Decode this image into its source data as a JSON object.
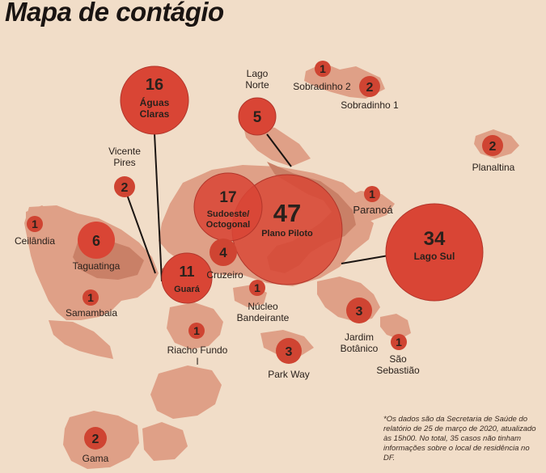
{
  "title": "Mapa de contágio",
  "note": "*Os dados são da Secretaria de Saúde do relatório de 25 de março de 2020, atualizado às 15h00. No total, 35 casos não tinham informações sobre o local de residência no DF.",
  "colors": {
    "background": "#f1ddc8",
    "land": "#dfa087",
    "land_dark": "#c98067",
    "bubble_large": "#d94535",
    "bubble_small": "#cf4432",
    "text": "#2a211c"
  },
  "regions": [
    {
      "id": "aguas-claras",
      "value": "16",
      "name": "Águas Claras"
    },
    {
      "id": "lago-norte",
      "value": "5",
      "name": "Lago Norte"
    },
    {
      "id": "sobradinho-2",
      "value": "1",
      "name": "Sobradinho 2"
    },
    {
      "id": "sobradinho-1",
      "value": "2",
      "name": "Sobradinho 1"
    },
    {
      "id": "planaltina",
      "value": "2",
      "name": "Planaltina"
    },
    {
      "id": "vicente-pires",
      "value": "2",
      "name": "Vicente Pires"
    },
    {
      "id": "sudoeste-octogonal",
      "value": "17",
      "name": "Sudoeste/ Octogonal"
    },
    {
      "id": "plano-piloto",
      "value": "47",
      "name": "Plano Piloto"
    },
    {
      "id": "paranoa",
      "value": "1",
      "name": "Paranoá"
    },
    {
      "id": "lago-sul",
      "value": "34",
      "name": "Lago Sul"
    },
    {
      "id": "ceilandia",
      "value": "1",
      "name": "Ceilândia"
    },
    {
      "id": "taguatinga",
      "value": "6",
      "name": "Taguatinga"
    },
    {
      "id": "cruzeiro",
      "value": "4",
      "name": "Cruzeiro"
    },
    {
      "id": "guara",
      "value": "11",
      "name": "Guará"
    },
    {
      "id": "samambaia",
      "value": "1",
      "name": "Samambaia"
    },
    {
      "id": "nucleo-bandeirante",
      "value": "1",
      "name": "Núcleo Bandeirante"
    },
    {
      "id": "riacho-fundo-1",
      "value": "1",
      "name": "Riacho Fundo I"
    },
    {
      "id": "park-way",
      "value": "3",
      "name": "Park Way"
    },
    {
      "id": "jardim-botanico",
      "value": "3",
      "name": "Jardim Botânico"
    },
    {
      "id": "sao-sebastiao",
      "value": "1",
      "name": "São Sebastião"
    },
    {
      "id": "gama",
      "value": "2",
      "name": "Gama"
    }
  ]
}
